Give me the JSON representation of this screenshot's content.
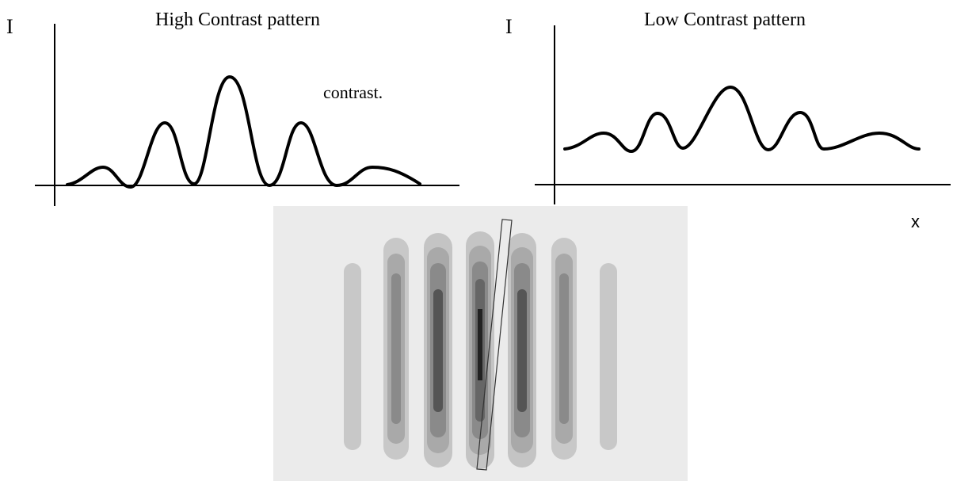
{
  "left_plot": {
    "axis_label": "I",
    "title": "High Contrast pattern",
    "annotation": "contrast."
  },
  "right_plot": {
    "axis_label": "I",
    "title": "Low Contrast pattern"
  },
  "x_label": "x"
}
